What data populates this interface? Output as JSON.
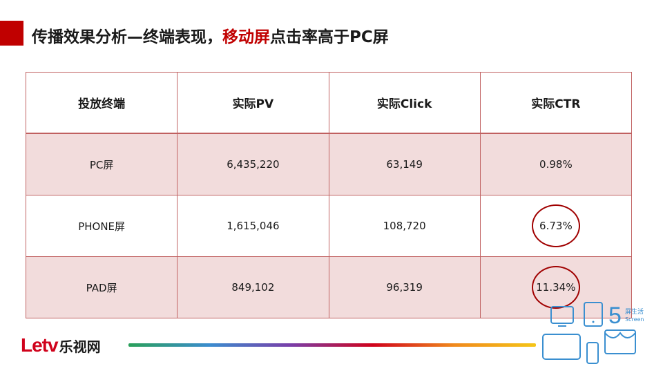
{
  "title": {
    "prefix": "传播效果分析—终端表现，",
    "highlight": "移动屏",
    "suffix": "点击率高于PC屏"
  },
  "table": {
    "headers": [
      "投放终端",
      "实际PV",
      "实际Click",
      "实际CTR"
    ],
    "rows": [
      {
        "terminal": "PC屏",
        "pv": "6,435,220",
        "click": "63,149",
        "ctr": "0.98%"
      },
      {
        "terminal": "PHONE屏",
        "pv": "1,615,046",
        "click": "108,720",
        "ctr": "6.73%"
      },
      {
        "terminal": "PAD屏",
        "pv": "849,102",
        "click": "96,319",
        "ctr": "11.34%"
      }
    ]
  },
  "footer": {
    "logo_latin": "Letv",
    "logo_cn": "乐视网",
    "badge_number": "5",
    "badge_cn": "屏生活",
    "badge_en": "Screen"
  },
  "colors": {
    "accent": "#c00000",
    "row_shade": "#f2dcdc",
    "border": "#c06060",
    "icon_blue": "#3a8fd0"
  }
}
